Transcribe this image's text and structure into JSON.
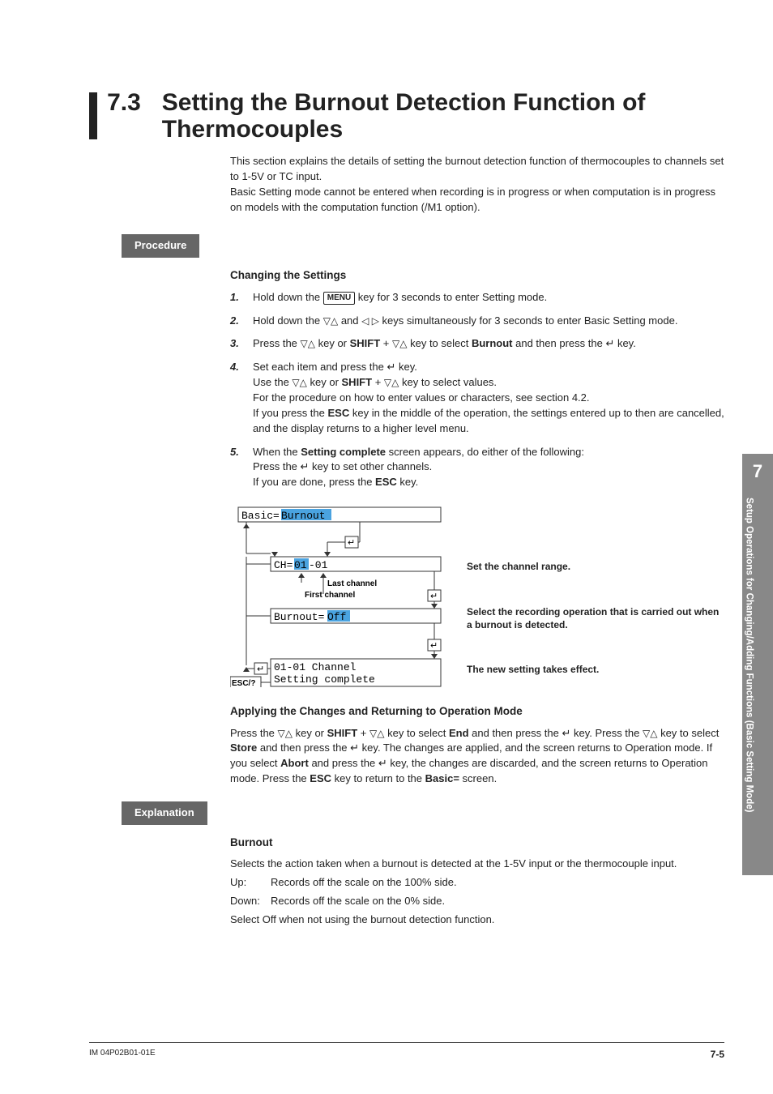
{
  "heading": {
    "num": "7.3",
    "title": "Setting the Burnout Detection Function of Thermocouples"
  },
  "intro": [
    "This section explains the details of setting the burnout detection function of thermocouples to channels set to 1-5V or TC input.",
    "Basic Setting mode cannot be entered when recording is in progress or when computation is in progress on models with the computation function (/M1 option)."
  ],
  "labels": {
    "procedure": "Procedure",
    "explanation": "Explanation"
  },
  "procedure": {
    "subheading": "Changing the Settings",
    "steps": [
      {
        "n": "1.",
        "parts": [
          "Hold down the ",
          {
            "key": "MENU"
          },
          " key for 3 seconds to enter Setting mode."
        ]
      },
      {
        "n": "2.",
        "parts": [
          "Hold down the ",
          {
            "tri": "▽△"
          },
          " and ",
          {
            "tri": "◁ ▷"
          },
          " keys simultaneously for 3 seconds to enter Basic Setting mode."
        ]
      },
      {
        "n": "3.",
        "parts": [
          "Press the ",
          {
            "tri": "▽△"
          },
          " key or ",
          {
            "b": "SHIFT"
          },
          " + ",
          {
            "tri": "▽△"
          },
          " key to select ",
          {
            "b": "Burnout"
          },
          " and then press the ",
          {
            "enter": true
          },
          " key."
        ]
      },
      {
        "n": "4.",
        "parts": [
          "Set each item and press the ",
          {
            "enter": true
          },
          " key.",
          {
            "br": true
          },
          "Use the ",
          {
            "tri": "▽△"
          },
          " key or ",
          {
            "b": "SHIFT"
          },
          " + ",
          {
            "tri": "▽△"
          },
          " key to select values.",
          {
            "br": true
          },
          "For the procedure on how to enter values or characters, see section 4.2.",
          {
            "br": true
          },
          "If you press the ",
          {
            "b": "ESC"
          },
          " key in the middle of the operation, the settings entered up to then are cancelled, and the display returns to a higher level menu."
        ]
      },
      {
        "n": "5.",
        "parts": [
          "When the ",
          {
            "b": "Setting complete"
          },
          " screen appears, do either of the following:",
          {
            "br": true
          },
          "Press the ",
          {
            "enter": true
          },
          " key to set other channels.",
          {
            "br": true
          },
          "If you are done, press the ",
          {
            "b": "ESC"
          },
          " key."
        ]
      }
    ]
  },
  "diagram": {
    "row1": {
      "prefix": "Basic=",
      "hl": "Burnout"
    },
    "row2": {
      "prefix": "CH=",
      "hl": "01",
      "suffix": "-01"
    },
    "row2_labels": {
      "last": "Last channel",
      "first": "First channel"
    },
    "row3": {
      "prefix": "Burnout=",
      "hl": "Off"
    },
    "row4a": "01-01 Channel",
    "row4b": "Setting complete",
    "esc": "ESC/?",
    "captions": {
      "c1": "Set the channel range.",
      "c2": "Select the recording operation that is carried out when a burnout is detected.",
      "c3": "The new setting takes effect."
    },
    "colors": {
      "highlight": "#4aa3e0",
      "line": "#333333",
      "bg": "#ffffff"
    }
  },
  "applying": {
    "heading": "Applying the Changes and Returning to Operation Mode",
    "parts": [
      "Press the ",
      {
        "tri": "▽△"
      },
      " key or ",
      {
        "b": "SHIFT"
      },
      " + ",
      {
        "tri": "▽△"
      },
      " key to select ",
      {
        "b": "End"
      },
      " and then press the ",
      {
        "enter": true
      },
      " key. Press the ",
      {
        "tri": "▽△"
      },
      " key to select ",
      {
        "b": "Store"
      },
      " and then press the ",
      {
        "enter": true
      },
      " key. The changes are applied, and the screen returns to Operation mode. If you select ",
      {
        "b": "Abort"
      },
      " and press the ",
      {
        "enter": true
      },
      " key, the changes are discarded, and the screen returns to Operation mode. Press the ",
      {
        "b": "ESC"
      },
      " key to return to the ",
      {
        "b": "Basic="
      },
      " screen."
    ]
  },
  "explanation": {
    "heading": "Burnout",
    "intro": "Selects the action taken when a burnout is detected at the 1-5V input or the thermocouple input.",
    "rows": [
      {
        "k": "Up:",
        "v": "Records off the scale on the 100% side."
      },
      {
        "k": "Down:",
        "v": "Records off the scale on the 0% side."
      }
    ],
    "outro": "Select Off when not using the burnout detection function."
  },
  "tab": {
    "num": "7",
    "text": "Setup Operations for Changing/Adding Functions (Basic Setting Mode)"
  },
  "footer": {
    "left": "IM 04P02B01-01E",
    "right": "7-5"
  }
}
